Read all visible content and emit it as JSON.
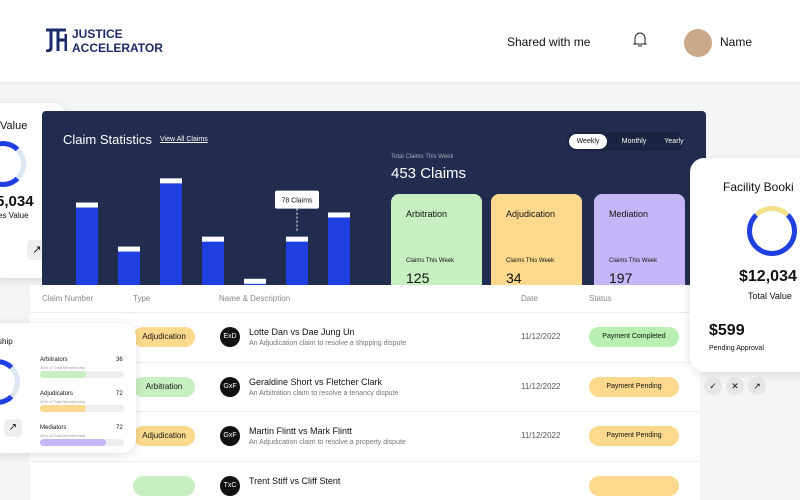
{
  "header": {
    "logo_top": "JUSTICE",
    "logo_bottom": "ACCELERATOR",
    "shared": "Shared with me",
    "user": "Name"
  },
  "value_card": {
    "title": "Value",
    "amount": "5,034",
    "caption": "es Value"
  },
  "claim_stats": {
    "title": "Claim Statistics",
    "link": "View All Claims",
    "tabs": [
      "Weekly",
      "Monthly",
      "Yearly"
    ],
    "total_caption": "Total Claims This Week",
    "total": "453 Claims",
    "cards": [
      {
        "title": "Arbitration",
        "caption": "Claims This Week",
        "value": "125",
        "color": "#c8efc2"
      },
      {
        "title": "Adjudication",
        "caption": "Claims This Week",
        "value": "34",
        "color": "#fcd98c"
      },
      {
        "title": "Mediation",
        "caption": "Claims This Week",
        "value": "197",
        "color": "#c5b6f7"
      }
    ]
  },
  "claim_chart": {
    "type": "bar",
    "values": [
      133,
      62,
      172,
      78,
      10,
      78,
      117
    ],
    "value_labels": [
      null,
      null,
      null,
      null,
      null,
      "78 Claims",
      null
    ],
    "color": "#1f3fe0"
  },
  "table": {
    "headers": [
      "Claim Number",
      "Type",
      "Name & Description",
      "Date",
      "Status"
    ],
    "rows": [
      {
        "type": "Adjudication",
        "initials": "ExD",
        "name": "Lotte Dan vs Dae Jung Un",
        "description": "An Adjudication claim to resolve a shipping dispute",
        "date": "11/12/2022",
        "status": "Payment Completed"
      },
      {
        "type": "Arbitration",
        "initials": "GxF",
        "name": "Geraldine Short vs Fletcher Clark",
        "description": "An Arbitration claim to resolve a tenancy dispute",
        "date": "11/12/2022",
        "status": "Payment Pending"
      },
      {
        "type": "Adjudication",
        "initials": "GxF",
        "name": "Martin Flintt vs Mark Flintt",
        "description": "An Adjudication claim to resolve a property dispute",
        "date": "11/12/2022",
        "status": "Payment Pending"
      },
      {
        "initials": "TxC",
        "name": "Trent Stiff vs Cliff Stent"
      }
    ]
  },
  "membership": {
    "title": "ship",
    "items": [
      {
        "name": "Arbitrators",
        "count": "36",
        "caption": "30% of Total Membership"
      },
      {
        "name": "Adjudicators",
        "count": "72",
        "caption": "40% of Total Membership"
      },
      {
        "name": "Mediators",
        "count": "72",
        "caption": "40% of Total Membership"
      }
    ]
  },
  "facility": {
    "title": "Facility Booki",
    "amount": "$12,034",
    "caption": "Total Value",
    "pending": "$599",
    "pending_caption": "Pending Approval"
  }
}
